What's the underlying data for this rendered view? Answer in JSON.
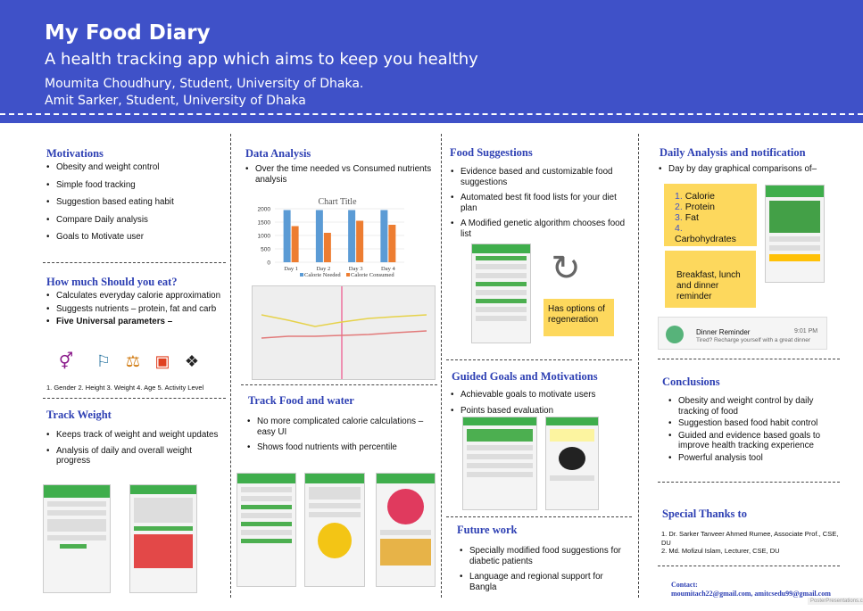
{
  "header": {
    "title": "My Food Diary",
    "subtitle": "A health tracking app which aims to keep you healthy",
    "author1": "Moumita Choudhury, Student, University of Dhaka.",
    "author2": "Amit Sarker, Student, University of Dhaka"
  },
  "motivations": {
    "title": "Motivations",
    "items": [
      "Obesity and weight control",
      "Simple food tracking",
      "Suggestion based eating habit",
      "Compare Daily analysis",
      "Goals to Motivate user"
    ]
  },
  "how_much": {
    "title": "How much Should you eat?",
    "items": [
      "Calculates everyday calorie approximation",
      "Suggests nutrients – protein, fat and carb",
      "Five Universal parameters –"
    ],
    "params": "1. Gender 2. Height 3. Weight 4. Age 5. Activity Level"
  },
  "track_weight": {
    "title": "Track Weight",
    "items": [
      "Keeps track of weight and weight updates",
      "Analysis of daily and overall weight progress"
    ]
  },
  "data_analysis": {
    "title": "Data Analysis",
    "items": [
      "Over the time needed vs Consumed nutrients analysis"
    ]
  },
  "track_food": {
    "title": "Track Food and water",
    "items": [
      "No more complicated calorie calculations – easy UI",
      "Shows food nutrients with percentile"
    ]
  },
  "food_suggestions": {
    "title": "Food Suggestions",
    "items": [
      "Evidence based and customizable food suggestions",
      "Automated best fit food lists for your diet plan",
      "A Modified genetic algorithm chooses food list"
    ],
    "note": "Has options of regeneration"
  },
  "guided_goals": {
    "title": "Guided Goals and Motivations",
    "items": [
      "Achievable goals to motivate users",
      "Points based evaluation"
    ]
  },
  "future_work": {
    "title": "Future work",
    "items": [
      "Specially modified food suggestions for diabetic patients",
      "Language and regional support for Bangla"
    ]
  },
  "daily_analysis": {
    "title": "Daily Analysis and notification",
    "intro": "Day by day graphical comparisons of–",
    "list": [
      "Calorie",
      "Protein",
      "Fat",
      "Carbohydrates"
    ],
    "reminder_note": "Breakfast, lunch and dinner reminder",
    "notif_title": "Dinner Reminder",
    "notif_time": "9:01 PM",
    "notif_body": "Tired? Recharge yourself with a great dinner"
  },
  "conclusions": {
    "title": "Conclusions",
    "items": [
      "Obesity and weight control by daily tracking of food",
      "Suggestion based food habit control",
      "Guided and evidence based goals to improve health tracking experience",
      "Powerful analysis tool"
    ]
  },
  "thanks": {
    "title": "Special Thanks to",
    "items": [
      "1.  Dr. Sarker Tanveer Ahmed Rumee, Associate Prof., CSE, DU",
      "2.  Md. Mofizul Islam, Lecturer, CSE, DU"
    ]
  },
  "contact": {
    "label": "Contact:",
    "emails": "moumitach22@gmail.com, amitcsedu99@gmail.com"
  },
  "footer": {
    "brand": "PosterPresentations.com"
  },
  "chart_data": {
    "type": "bar",
    "title": "Chart Title",
    "categories": [
      "Day 1",
      "Day 2",
      "Day 3",
      "Day 4"
    ],
    "series": [
      {
        "name": "Calorie Needed",
        "color": "#5b9bd5",
        "values": [
          1950,
          1950,
          1950,
          1950
        ]
      },
      {
        "name": "Calorie Consumed",
        "color": "#ed7d31",
        "values": [
          1350,
          1100,
          1550,
          1400
        ]
      }
    ],
    "ylim": [
      0,
      2000
    ],
    "yticks": [
      0,
      500,
      1000,
      1500,
      2000
    ]
  }
}
